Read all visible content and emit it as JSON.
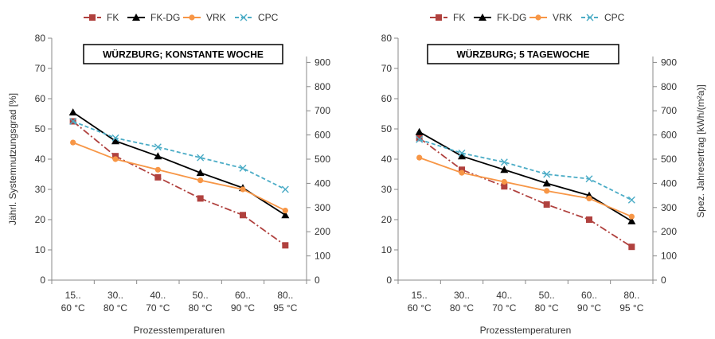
{
  "colors": {
    "FK": "#b0413e",
    "FK-DG": "#000000",
    "VRK": "#f79646",
    "CPC": "#4bacc6",
    "axis": "#888888",
    "text": "#333333"
  },
  "legend": [
    "FK",
    "FK-DG",
    "VRK",
    "CPC"
  ],
  "chart_data": [
    {
      "type": "line",
      "title": "WÜRZBURG; KONSTANTE WOCHE",
      "xlabel": "Prozesstemperaturen",
      "ylabel": "Jährl. Systemnutzungsgrad [%]",
      "y2label": "",
      "categories": [
        [
          "15..",
          "60 °C"
        ],
        [
          "30..",
          "80 °C"
        ],
        [
          "40..",
          "70 °C"
        ],
        [
          "50..",
          "80 °C"
        ],
        [
          "60..",
          "90 °C"
        ],
        [
          "80..",
          "95 °C"
        ]
      ],
      "ylim": [
        0,
        80
      ],
      "yticks": [
        0,
        10,
        20,
        30,
        40,
        50,
        60,
        70,
        80
      ],
      "y2lim": [
        0,
        1000
      ],
      "y2ticks": [
        0,
        100,
        200,
        300,
        400,
        500,
        600,
        700,
        800,
        900
      ],
      "legend_position": "top",
      "series": [
        {
          "name": "FK",
          "values": [
            52.5,
            41,
            34,
            27,
            21.5,
            11.5
          ]
        },
        {
          "name": "FK-DG",
          "values": [
            55.5,
            46,
            41,
            35.5,
            30.5,
            21.5
          ]
        },
        {
          "name": "VRK",
          "values": [
            45.5,
            40,
            36.5,
            33,
            30,
            23
          ]
        },
        {
          "name": "CPC",
          "values": [
            52.5,
            47,
            44,
            40.5,
            37,
            30
          ]
        }
      ]
    },
    {
      "type": "line",
      "title": "WÜRZBURG; 5 TAGEWOCHE",
      "xlabel": "Prozesstemperaturen",
      "ylabel": "",
      "y2label": "Spez. Jahresertrag [kWh/(m²a)]",
      "categories": [
        [
          "15..",
          "60 °C"
        ],
        [
          "30..",
          "80 °C"
        ],
        [
          "40..",
          "70 °C"
        ],
        [
          "50..",
          "80 °C"
        ],
        [
          "60..",
          "90 °C"
        ],
        [
          "80..",
          "95 °C"
        ]
      ],
      "ylim": [
        0,
        80
      ],
      "yticks": [
        0,
        10,
        20,
        30,
        40,
        50,
        60,
        70,
        80
      ],
      "y2lim": [
        0,
        1000
      ],
      "y2ticks": [
        0,
        100,
        200,
        300,
        400,
        500,
        600,
        700,
        800,
        900
      ],
      "legend_position": "top",
      "series": [
        {
          "name": "FK",
          "values": [
            47,
            36.5,
            31,
            25,
            20,
            11
          ]
        },
        {
          "name": "FK-DG",
          "values": [
            49,
            41,
            36.5,
            32,
            28,
            19.5
          ]
        },
        {
          "name": "VRK",
          "values": [
            40.5,
            35.5,
            32.5,
            29.5,
            27,
            21
          ]
        },
        {
          "name": "CPC",
          "values": [
            46.5,
            42,
            39,
            35,
            33.5,
            26.5
          ]
        }
      ]
    }
  ]
}
